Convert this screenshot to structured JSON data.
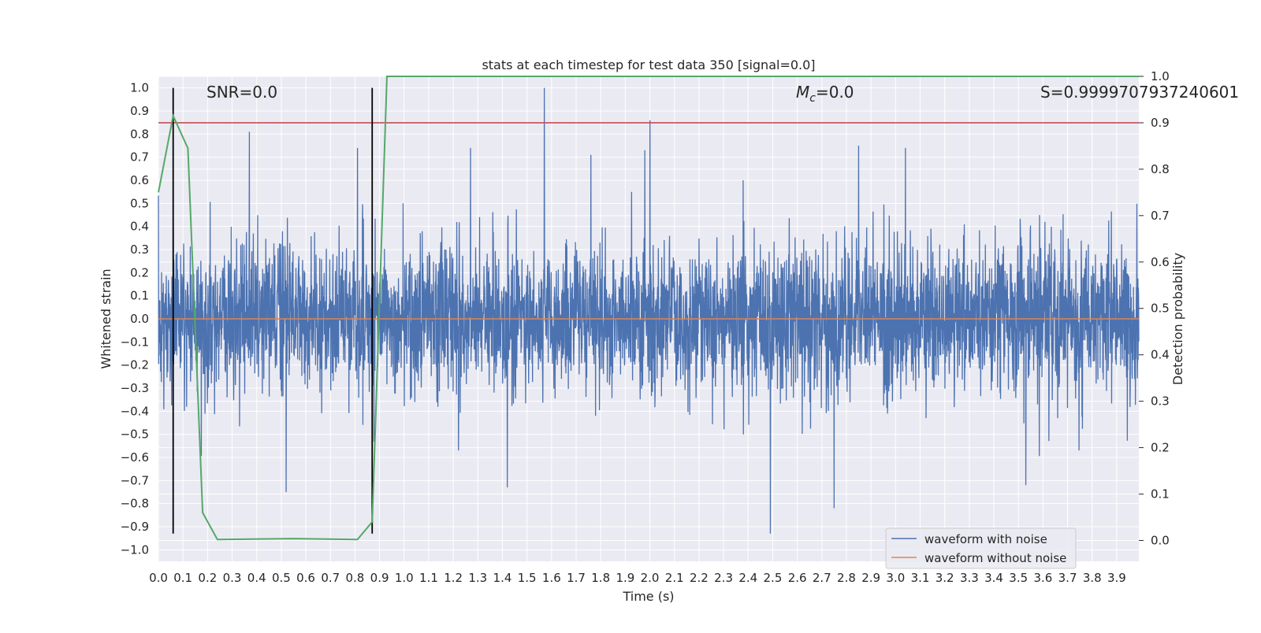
{
  "chart_data": {
    "type": "line",
    "title": "stats at each timestep for test data 350 [signal=0.0]",
    "xlabel": "Time (s)",
    "ylabel": "Whitened strain",
    "ylabel_right": "Detection probability",
    "xlim": [
      0.0,
      3.99
    ],
    "ylim": [
      -1.05,
      1.05
    ],
    "ylim_right": [
      -0.045,
      1.0
    ],
    "x_ticks": [
      "0.0",
      "0.1",
      "0.2",
      "0.3",
      "0.4",
      "0.5",
      "0.6",
      "0.7",
      "0.8",
      "0.9",
      "1.0",
      "1.1",
      "1.2",
      "1.3",
      "1.4",
      "1.5",
      "1.6",
      "1.7",
      "1.8",
      "1.9",
      "2.0",
      "2.1",
      "2.2",
      "2.3",
      "2.4",
      "2.5",
      "2.6",
      "2.7",
      "2.8",
      "2.9",
      "3.0",
      "3.1",
      "3.2",
      "3.3",
      "3.4",
      "3.5",
      "3.6",
      "3.7",
      "3.8",
      "3.9"
    ],
    "y_ticks": [
      "1.0",
      "0.9",
      "0.8",
      "0.7",
      "0.6",
      "0.5",
      "0.4",
      "0.3",
      "0.2",
      "0.1",
      "0.0",
      "−0.1",
      "−0.2",
      "−0.3",
      "−0.4",
      "−0.5",
      "−0.6",
      "−0.7",
      "−0.8",
      "−0.9",
      "−1.0"
    ],
    "y_ticks_right": [
      "1.0",
      "0.9",
      "0.8",
      "0.7",
      "0.6",
      "0.5",
      "0.4",
      "0.3",
      "0.2",
      "0.1",
      "0.0"
    ],
    "grid": true,
    "legend_position": "bottom-right",
    "annotations": {
      "snr": "SNR=0.0",
      "mc_symbol": "M",
      "mc_sub": "c",
      "mc_value": "=0.0",
      "s_value": "S=0.9999707937240601"
    },
    "series": [
      {
        "name": "waveform with noise",
        "color": "#4c72b0",
        "axis": "left",
        "noise_std": 0.16,
        "peaks": [
          {
            "x": 0.37,
            "y": 0.81
          },
          {
            "x": 0.81,
            "y": 0.74
          },
          {
            "x": 1.27,
            "y": 0.74
          },
          {
            "x": 1.57,
            "y": 1.0
          },
          {
            "x": 1.76,
            "y": 0.71
          },
          {
            "x": 1.98,
            "y": 0.73
          },
          {
            "x": 2.0,
            "y": 0.86
          },
          {
            "x": 2.38,
            "y": 0.6
          },
          {
            "x": 2.49,
            "y": -0.93
          },
          {
            "x": 2.75,
            "y": -0.82
          },
          {
            "x": 2.85,
            "y": 0.75
          },
          {
            "x": 3.04,
            "y": 0.74
          },
          {
            "x": 3.53,
            "y": -0.72
          },
          {
            "x": 0.52,
            "y": -0.75
          },
          {
            "x": 1.42,
            "y": -0.73
          }
        ]
      },
      {
        "name": "waveform without noise",
        "color": "#dd8452",
        "axis": "left",
        "constant": 0.0
      },
      {
        "name": "detection probability",
        "color": "#55a868",
        "axis": "right",
        "x": [
          0.0,
          0.06,
          0.12,
          0.18,
          0.24,
          0.55,
          0.81,
          0.87,
          0.93,
          3.99
        ],
        "y": [
          0.75,
          0.915,
          0.845,
          0.06,
          0.002,
          0.004,
          0.002,
          0.04,
          1.0,
          1.0
        ]
      }
    ],
    "threshold_right": {
      "value": 0.9,
      "color": "#c44e52"
    },
    "vertical_markers": [
      {
        "x": 0.06,
        "color": "#000000",
        "y_from": -0.93,
        "y_to": 1.0
      },
      {
        "x": 0.87,
        "color": "#000000",
        "y_from": -0.93,
        "y_to": 1.0
      }
    ]
  }
}
